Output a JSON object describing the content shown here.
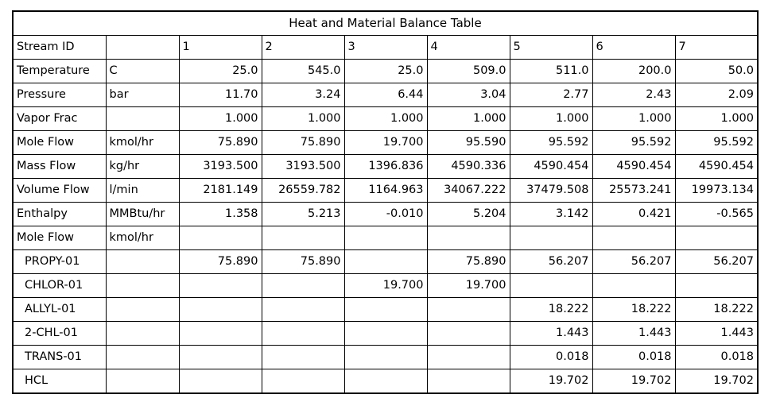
{
  "title": "Heat and Material Balance Table",
  "header": {
    "label": "Stream ID",
    "unit": "",
    "streams": [
      "1",
      "2",
      "3",
      "4",
      "5",
      "6",
      "7"
    ]
  },
  "rows": [
    {
      "label": "Temperature",
      "unit": "C",
      "values": [
        "25.0",
        "545.0",
        "25.0",
        "509.0",
        "511.0",
        "200.0",
        "50.0"
      ],
      "sub": false
    },
    {
      "label": "Pressure",
      "unit": "bar",
      "values": [
        "11.70",
        "3.24",
        "6.44",
        "3.04",
        "2.77",
        "2.43",
        "2.09"
      ],
      "sub": false
    },
    {
      "label": "Vapor Frac",
      "unit": "",
      "values": [
        "1.000",
        "1.000",
        "1.000",
        "1.000",
        "1.000",
        "1.000",
        "1.000"
      ],
      "sub": false
    },
    {
      "label": "Mole Flow",
      "unit": "kmol/hr",
      "values": [
        "75.890",
        "75.890",
        "19.700",
        "95.590",
        "95.592",
        "95.592",
        "95.592"
      ],
      "sub": false
    },
    {
      "label": "Mass Flow",
      "unit": "kg/hr",
      "values": [
        "3193.500",
        "3193.500",
        "1396.836",
        "4590.336",
        "4590.454",
        "4590.454",
        "4590.454"
      ],
      "sub": false
    },
    {
      "label": "Volume Flow",
      "unit": "l/min",
      "values": [
        "2181.149",
        "26559.782",
        "1164.963",
        "34067.222",
        "37479.508",
        "25573.241",
        "19973.134"
      ],
      "sub": false
    },
    {
      "label": "Enthalpy",
      "unit": "MMBtu/hr",
      "values": [
        "1.358",
        "5.213",
        "-0.010",
        "5.204",
        "3.142",
        "0.421",
        "-0.565"
      ],
      "sub": false
    },
    {
      "label": "Mole Flow",
      "unit": "kmol/hr",
      "values": [
        "",
        "",
        "",
        "",
        "",
        "",
        ""
      ],
      "sub": false
    },
    {
      "label": "PROPY-01",
      "unit": "",
      "values": [
        "75.890",
        "75.890",
        "",
        "75.890",
        "56.207",
        "56.207",
        "56.207"
      ],
      "sub": true
    },
    {
      "label": "CHLOR-01",
      "unit": "",
      "values": [
        "",
        "",
        "19.700",
        "19.700",
        "",
        "",
        ""
      ],
      "sub": true
    },
    {
      "label": "ALLYL-01",
      "unit": "",
      "values": [
        "",
        "",
        "",
        "",
        "18.222",
        "18.222",
        "18.222"
      ],
      "sub": true
    },
    {
      "label": "2-CHL-01",
      "unit": "",
      "values": [
        "",
        "",
        "",
        "",
        "1.443",
        "1.443",
        "1.443"
      ],
      "sub": true
    },
    {
      "label": "TRANS-01",
      "unit": "",
      "values": [
        "",
        "",
        "",
        "",
        "0.018",
        "0.018",
        "0.018"
      ],
      "sub": true
    },
    {
      "label": "HCL",
      "unit": "",
      "values": [
        "",
        "",
        "",
        "",
        "19.702",
        "19.702",
        "19.702"
      ],
      "sub": true
    }
  ]
}
